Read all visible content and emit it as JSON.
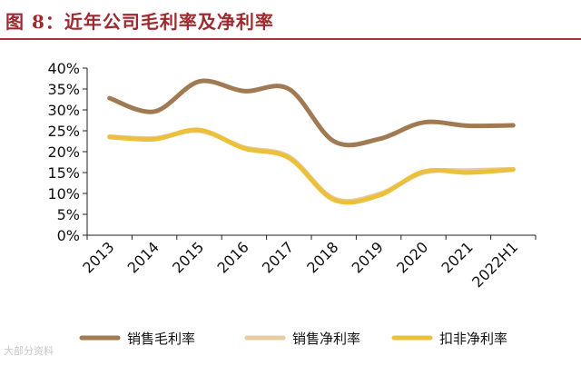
{
  "header": {
    "title": "图 8：近年公司毛利率及净利率"
  },
  "chart_data": {
    "type": "line",
    "title": "图 8：近年公司毛利率及净利率",
    "categories": [
      "2013",
      "2014",
      "2015",
      "2016",
      "2017",
      "2018",
      "2019",
      "2020",
      "2021",
      "2022H1"
    ],
    "ylim": [
      0,
      40
    ],
    "yticks": [
      "40%",
      "35%",
      "30%",
      "25%",
      "20%",
      "15%",
      "10%",
      "5%",
      "0%"
    ],
    "yunit": "%",
    "grid": false,
    "legend_position": "bottom",
    "series": [
      {
        "name": "销售毛利率",
        "color": "#a07a52",
        "values": [
          32.8,
          29.6,
          36.8,
          34.5,
          35.0,
          22.5,
          23.0,
          27.0,
          26.2,
          26.3
        ]
      },
      {
        "name": "销售净利率",
        "color": "#e6cca2",
        "values": [
          23.6,
          23.2,
          25.0,
          21.0,
          18.8,
          8.8,
          9.8,
          15.0,
          15.5,
          15.8
        ]
      },
      {
        "name": "扣非净利率",
        "color": "#ebc03d",
        "values": [
          23.5,
          23.0,
          25.2,
          20.8,
          18.5,
          8.5,
          9.5,
          15.2,
          15.0,
          15.7
        ]
      }
    ]
  },
  "watermark": "大部分资料"
}
